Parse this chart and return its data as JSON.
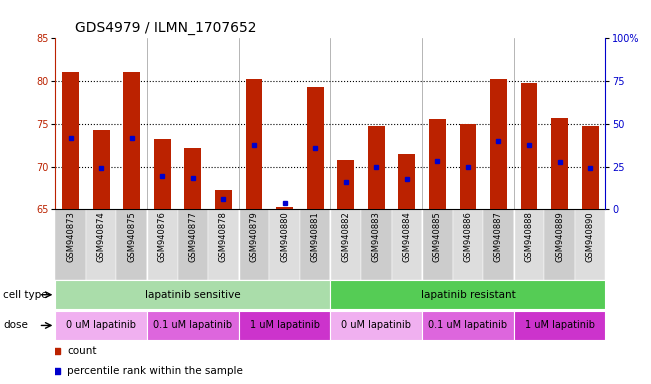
{
  "title": "GDS4979 / ILMN_1707652",
  "samples": [
    "GSM940873",
    "GSM940874",
    "GSM940875",
    "GSM940876",
    "GSM940877",
    "GSM940878",
    "GSM940879",
    "GSM940880",
    "GSM940881",
    "GSM940882",
    "GSM940883",
    "GSM940884",
    "GSM940885",
    "GSM940886",
    "GSM940887",
    "GSM940888",
    "GSM940889",
    "GSM940890"
  ],
  "bar_heights": [
    81.1,
    74.3,
    81.1,
    73.2,
    72.2,
    67.2,
    80.2,
    65.3,
    79.3,
    70.8,
    74.8,
    71.5,
    75.6,
    75.0,
    80.3,
    79.8,
    75.7,
    74.7
  ],
  "blue_dot_y": [
    73.3,
    69.8,
    73.3,
    68.9,
    68.7,
    66.2,
    72.5,
    65.7,
    72.2,
    68.2,
    70.0,
    68.5,
    70.7,
    70.0,
    73.0,
    72.5,
    70.5,
    69.8
  ],
  "ylim_left": [
    65,
    85
  ],
  "ylim_right": [
    0,
    100
  ],
  "yticks_left": [
    65,
    70,
    75,
    80,
    85
  ],
  "yticks_right": [
    0,
    25,
    50,
    75,
    100
  ],
  "ytick_labels_right": [
    "0",
    "25",
    "50",
    "75",
    "100%"
  ],
  "bar_color": "#bb2200",
  "dot_color": "#0000cc",
  "left_axis_color": "#bb2200",
  "right_axis_color": "#0000cc",
  "cell_type_groups": [
    {
      "label": "lapatinib sensitive",
      "start": 0,
      "end": 9,
      "color": "#aaddaa"
    },
    {
      "label": "lapatinib resistant",
      "start": 9,
      "end": 18,
      "color": "#55cc55"
    }
  ],
  "dose_groups": [
    {
      "label": "0 uM lapatinib",
      "start": 0,
      "end": 3,
      "color": "#f0b0f0"
    },
    {
      "label": "0.1 uM lapatinib",
      "start": 3,
      "end": 6,
      "color": "#dd66dd"
    },
    {
      "label": "1 uM lapatinib",
      "start": 6,
      "end": 9,
      "color": "#cc33cc"
    },
    {
      "label": "0 uM lapatinib",
      "start": 9,
      "end": 12,
      "color": "#f0b0f0"
    },
    {
      "label": "0.1 uM lapatinib",
      "start": 12,
      "end": 15,
      "color": "#dd66dd"
    },
    {
      "label": "1 uM lapatinib",
      "start": 15,
      "end": 18,
      "color": "#cc33cc"
    }
  ],
  "title_fontsize": 10,
  "tick_fontsize": 7,
  "bar_width": 0.55,
  "dividers": [
    3,
    6,
    9,
    12,
    15
  ],
  "hgrid_lines": [
    70,
    75,
    80
  ]
}
